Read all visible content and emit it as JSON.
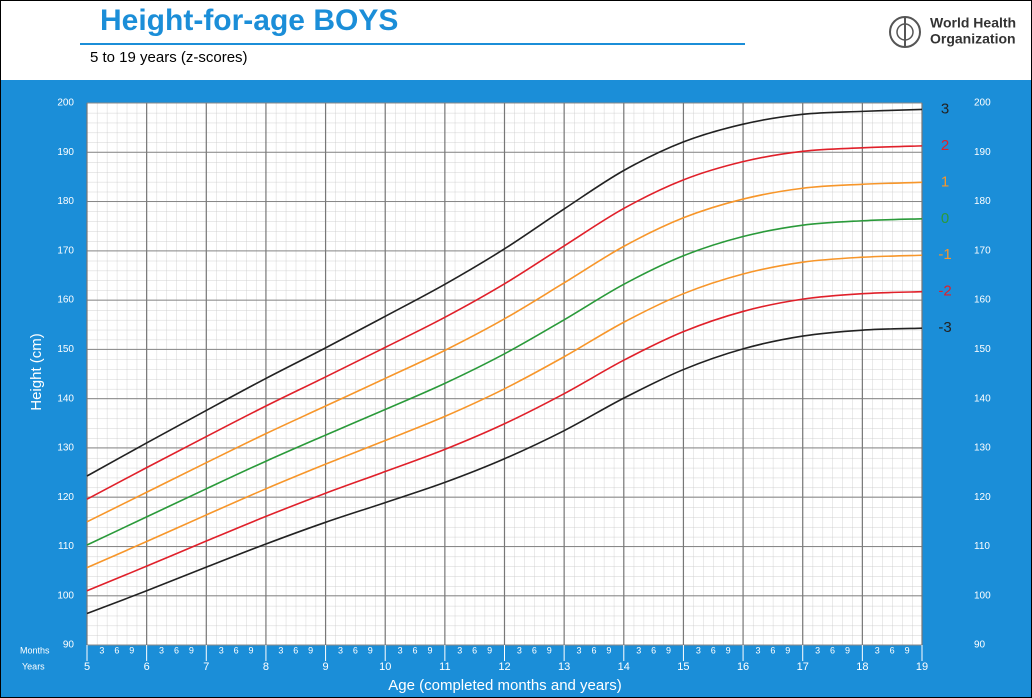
{
  "chart_data": {
    "type": "line",
    "title": "Height-for-age  BOYS",
    "subtitle": "5 to 19 years (z-scores)",
    "organization": [
      "World Health",
      "Organization"
    ],
    "ylabel": "Height (cm)",
    "xlabel": "Age (completed months and years)",
    "months_label": "Months",
    "years_label": "Years",
    "month_labels": [
      "3",
      "6",
      "9"
    ],
    "x": [
      5,
      6,
      7,
      8,
      9,
      10,
      11,
      12,
      13,
      14,
      15,
      16,
      17,
      18,
      19
    ],
    "xlim": [
      5,
      19
    ],
    "xticks": [
      5,
      6,
      7,
      8,
      9,
      10,
      11,
      12,
      13,
      14,
      15,
      16,
      17,
      18,
      19
    ],
    "ylim": [
      90,
      200
    ],
    "yticks": [
      90,
      100,
      110,
      120,
      130,
      140,
      150,
      160,
      170,
      180,
      190,
      200
    ],
    "grid": true,
    "series": [
      {
        "name": "3",
        "color": "#222222",
        "values": [
          124.3,
          131.0,
          137.6,
          144.1,
          150.3,
          156.7,
          163.2,
          170.4,
          178.5,
          186.3,
          192.1,
          195.7,
          197.7,
          198.3,
          198.7
        ]
      },
      {
        "name": "2",
        "color": "#e0202a",
        "values": [
          119.6,
          126.0,
          132.3,
          138.5,
          144.4,
          150.4,
          156.5,
          163.3,
          171.0,
          178.6,
          184.4,
          188.1,
          190.2,
          190.9,
          191.3
        ]
      },
      {
        "name": "1",
        "color": "#f7962a",
        "values": [
          115.0,
          121.0,
          127.0,
          132.9,
          138.5,
          144.1,
          149.8,
          156.2,
          163.5,
          170.9,
          176.7,
          180.5,
          182.7,
          183.5,
          183.9
        ]
      },
      {
        "name": "0",
        "color": "#2a9a3a",
        "values": [
          110.3,
          116.0,
          121.7,
          127.3,
          132.6,
          137.8,
          143.1,
          149.1,
          156.0,
          163.2,
          169.0,
          172.9,
          175.2,
          176.1,
          176.5
        ]
      },
      {
        "name": "-1",
        "color": "#f7962a",
        "values": [
          105.7,
          111.0,
          116.4,
          121.7,
          126.7,
          131.5,
          136.4,
          142.0,
          148.5,
          155.5,
          161.3,
          165.3,
          167.7,
          168.7,
          169.1
        ]
      },
      {
        "name": "-2",
        "color": "#e0202a",
        "values": [
          101.0,
          106.0,
          111.1,
          116.1,
          120.8,
          125.2,
          129.7,
          134.9,
          141.0,
          147.8,
          153.6,
          157.7,
          160.2,
          161.3,
          161.7
        ]
      },
      {
        "name": "-3",
        "color": "#222222",
        "values": [
          96.4,
          101.0,
          105.8,
          110.5,
          114.9,
          118.9,
          123.0,
          127.8,
          133.5,
          140.1,
          145.9,
          150.1,
          152.7,
          153.9,
          154.3
        ]
      }
    ]
  }
}
